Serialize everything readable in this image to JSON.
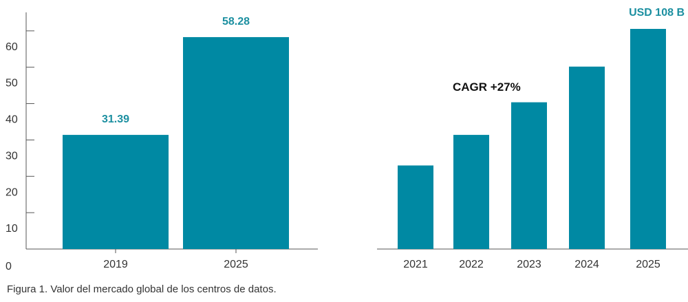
{
  "colors": {
    "bar": "#0089a3",
    "value_label": "#1b8fa0",
    "axis": "#555555",
    "text": "#333333"
  },
  "caption": "Figura 1. Valor del mercado global de los centros de datos.",
  "chart_data": [
    {
      "type": "bar",
      "categories": [
        "2019",
        "2025"
      ],
      "values": [
        31.39,
        58.28
      ],
      "value_labels": [
        "31.39",
        "58.28"
      ],
      "yticks": [
        0,
        10,
        20,
        30,
        40,
        50,
        60
      ],
      "ylim": [
        0,
        63
      ],
      "grid": false
    },
    {
      "type": "bar",
      "categories": [
        "2021",
        "2022",
        "2023",
        "2024",
        "2025"
      ],
      "values": [
        41,
        56,
        72,
        89.5,
        108
      ],
      "value_labels": [
        "",
        "",
        "",
        "",
        "USD 108 B"
      ],
      "annotation": "CAGR +27%",
      "ylim": [
        0,
        120
      ],
      "grid": false
    }
  ]
}
